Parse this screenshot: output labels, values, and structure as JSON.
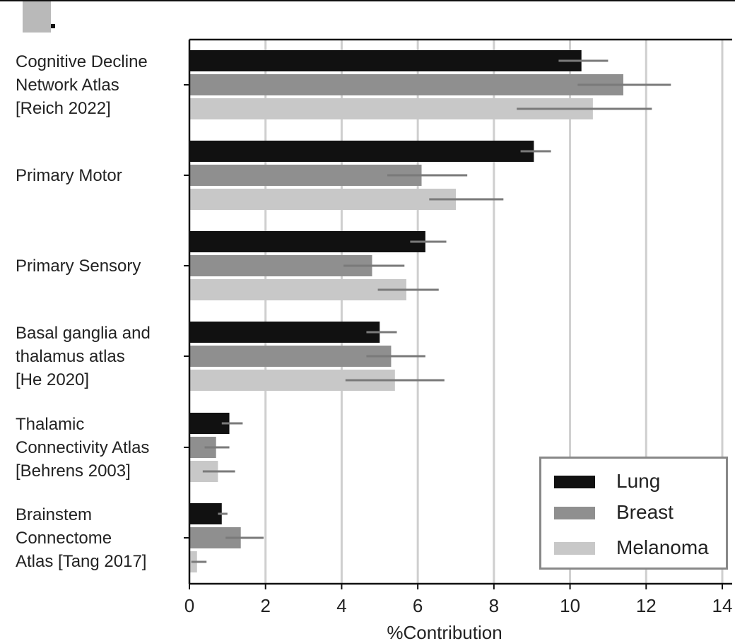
{
  "chart_data": {
    "type": "bar",
    "orientation": "horizontal",
    "categories": [
      "Cognitive Decline\nNetwork Atlas\n[Reich 2022]",
      "Primary Motor",
      "Primary Sensory",
      "Basal ganglia and\nthalamus atlas\n[He 2020]",
      "Thalamic\nConnectivity Atlas\n[Behrens 2003]",
      "Brainstem\nConnectome\nAtlas [Tang 2017]"
    ],
    "series": [
      {
        "name": "Lung",
        "color": "#111111",
        "values": [
          10.3,
          9.05,
          6.2,
          5.0,
          1.05,
          0.85
        ],
        "error": [
          [
            9.7,
            11.0
          ],
          [
            8.7,
            9.5
          ],
          [
            5.8,
            6.75
          ],
          [
            4.65,
            5.45
          ],
          [
            0.85,
            1.4
          ],
          [
            0.75,
            1.0
          ]
        ]
      },
      {
        "name": "Breast",
        "color": "#8f8f8f",
        "values": [
          11.4,
          6.1,
          4.8,
          5.3,
          0.7,
          1.35
        ],
        "error": [
          [
            10.2,
            12.65
          ],
          [
            5.2,
            7.3
          ],
          [
            4.05,
            5.65
          ],
          [
            4.65,
            6.2
          ],
          [
            0.4,
            1.05
          ],
          [
            0.95,
            1.95
          ]
        ]
      },
      {
        "name": "Melanoma",
        "color": "#c8c8c8",
        "values": [
          10.6,
          7.0,
          5.7,
          5.4,
          0.75,
          0.2
        ],
        "error": [
          [
            8.6,
            12.15
          ],
          [
            6.3,
            8.25
          ],
          [
            4.95,
            6.55
          ],
          [
            4.1,
            6.7
          ],
          [
            0.35,
            1.2
          ],
          [
            0.05,
            0.45
          ]
        ]
      }
    ],
    "xlabel": "%Contribution",
    "xticks": [
      0,
      2,
      4,
      6,
      8,
      10,
      12,
      14
    ],
    "xlim": [
      0,
      14
    ],
    "grid": "vertical",
    "legend_position": "bottom-right"
  }
}
